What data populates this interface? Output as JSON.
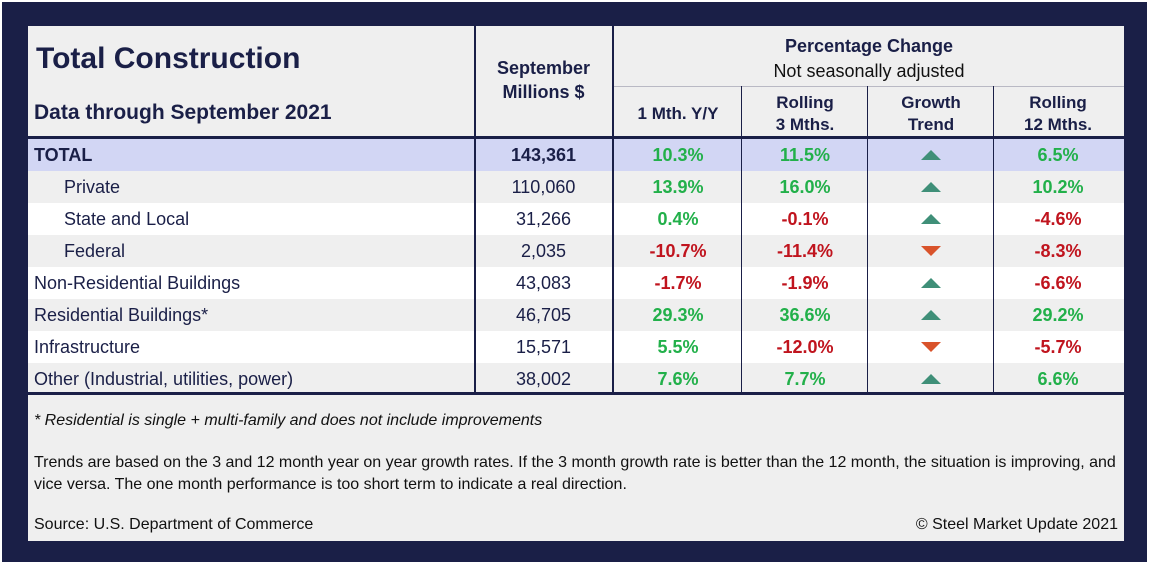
{
  "header": {
    "title": "Total Construction",
    "subtitle": "Data through September 2021",
    "value_col_line1": "September",
    "value_col_line2": "Millions $",
    "pct_group_line1": "Percentage Change",
    "pct_group_line2": "Not seasonally adjusted",
    "columns": [
      {
        "line1": "1 Mth. Y/Y",
        "line2": ""
      },
      {
        "line1": "Rolling",
        "line2": "3 Mths."
      },
      {
        "line1": "Growth",
        "line2": "Trend"
      },
      {
        "line1": "Rolling",
        "line2": "12 Mths."
      }
    ]
  },
  "rows": [
    {
      "label": "TOTAL",
      "value": "143,361",
      "m1": "10.3%",
      "m3": "11.5%",
      "trend": "up",
      "m12": "6.5%"
    },
    {
      "label": "Private",
      "value": "110,060",
      "m1": "13.9%",
      "m3": "16.0%",
      "trend": "up",
      "m12": "10.2%"
    },
    {
      "label": "State and Local",
      "value": "31,266",
      "m1": "0.4%",
      "m3": "-0.1%",
      "trend": "up",
      "m12": "-4.6%"
    },
    {
      "label": "Federal",
      "value": "2,035",
      "m1": "-10.7%",
      "m3": "-11.4%",
      "trend": "down",
      "m12": "-8.3%"
    },
    {
      "label": "Non-Residential Buildings",
      "value": "43,083",
      "m1": "-1.7%",
      "m3": "-1.9%",
      "trend": "up",
      "m12": "-6.6%"
    },
    {
      "label": "Residential Buildings*",
      "value": "46,705",
      "m1": "29.3%",
      "m3": "36.6%",
      "trend": "up",
      "m12": "29.2%"
    },
    {
      "label": "Infrastructure",
      "value": "15,571",
      "m1": "5.5%",
      "m3": "-12.0%",
      "trend": "down",
      "m12": "-5.7%"
    },
    {
      "label": "Other (Industrial, utilities, power)",
      "value": "38,002",
      "m1": "7.6%",
      "m3": "7.7%",
      "trend": "up",
      "m12": "6.6%"
    }
  ],
  "trend_icons": {
    "up": "triangle-up-icon",
    "down": "triangle-down-icon"
  },
  "colors": {
    "frame": "#1a1f47",
    "positive": "#22b04a",
    "negative": "#c0141e",
    "trend_up": "#3f8f78",
    "trend_down": "#d9532b",
    "total_row": "#d2d6f4"
  },
  "notes": {
    "residential": "* Residential is single + multi-family and does not include improvements",
    "trends": "Trends are based on the 3 and 12 month year on year growth rates. If the 3 month growth rate is better than the 12 month, the situation is improving, and vice versa. The one month performance is too short term to indicate a real direction.",
    "source": "Source: U.S. Department of Commerce",
    "copyright": "© Steel Market Update 2021"
  }
}
